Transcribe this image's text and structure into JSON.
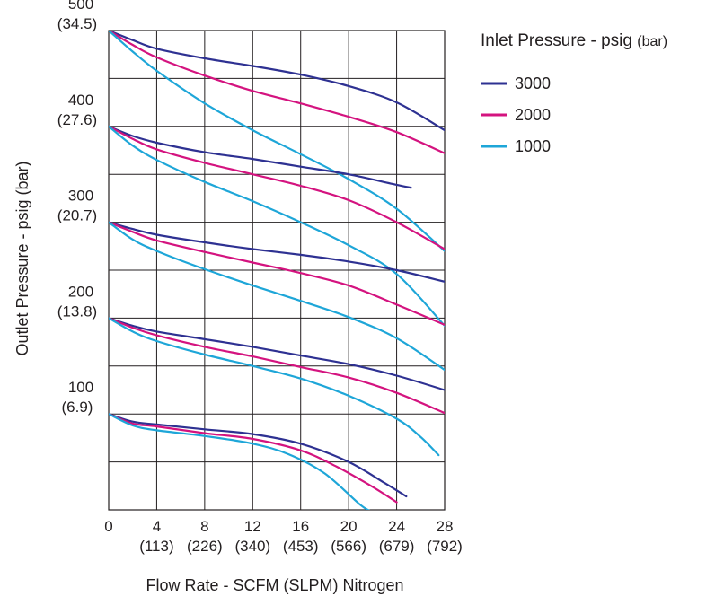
{
  "chart_data": {
    "type": "line",
    "xlabel": "Flow Rate - SCFM (SLPM) Nitrogen",
    "ylabel": "Outlet Pressure - psig (bar)",
    "xlim": [
      0,
      28
    ],
    "ylim": [
      0,
      500
    ],
    "x_ticks": [
      {
        "value": 0,
        "label": "0",
        "sub": ""
      },
      {
        "value": 4,
        "label": "4",
        "sub": "(113)"
      },
      {
        "value": 8,
        "label": "8",
        "sub": "(226)"
      },
      {
        "value": 12,
        "label": "12",
        "sub": "(340)"
      },
      {
        "value": 16,
        "label": "16",
        "sub": "(453)"
      },
      {
        "value": 20,
        "label": "20",
        "sub": "(566)"
      },
      {
        "value": 24,
        "label": "24",
        "sub": "(679)"
      },
      {
        "value": 28,
        "label": "28",
        "sub": "(792)"
      }
    ],
    "y_ticks": [
      {
        "value": 100,
        "label": "100",
        "sub": "(6.9)"
      },
      {
        "value": 200,
        "label": "200",
        "sub": "(13.8)"
      },
      {
        "value": 300,
        "label": "300",
        "sub": "(20.7)"
      },
      {
        "value": 400,
        "label": "400",
        "sub": "(27.6)"
      },
      {
        "value": 500,
        "label": "500",
        "sub": "(34.5)"
      }
    ],
    "grid": true,
    "legend": {
      "title": "Inlet Pressure - psig",
      "title_unit": "(bar)",
      "position": "right",
      "entries": [
        {
          "label": "3000",
          "color": "#2e3192"
        },
        {
          "label": "2000",
          "color": "#d4137f"
        },
        {
          "label": "1000",
          "color": "#1ea6d8"
        }
      ]
    },
    "series": [
      {
        "inlet": "3000",
        "set": 500,
        "color": "#2e3192",
        "points": [
          [
            0,
            500
          ],
          [
            2,
            490
          ],
          [
            4,
            481
          ],
          [
            8,
            471
          ],
          [
            12,
            463
          ],
          [
            16,
            454
          ],
          [
            20,
            442
          ],
          [
            24,
            425
          ],
          [
            28,
            396
          ]
        ]
      },
      {
        "inlet": "2000",
        "set": 500,
        "color": "#d4137f",
        "points": [
          [
            0,
            500
          ],
          [
            2,
            485
          ],
          [
            4,
            472
          ],
          [
            8,
            453
          ],
          [
            12,
            437
          ],
          [
            16,
            424
          ],
          [
            20,
            410
          ],
          [
            24,
            394
          ],
          [
            28,
            372
          ]
        ]
      },
      {
        "inlet": "1000",
        "set": 500,
        "color": "#1ea6d8",
        "points": [
          [
            0,
            500
          ],
          [
            2,
            478
          ],
          [
            4,
            458
          ],
          [
            8,
            424
          ],
          [
            12,
            396
          ],
          [
            16,
            371
          ],
          [
            20,
            345
          ],
          [
            24,
            314
          ],
          [
            28,
            270
          ]
        ]
      },
      {
        "inlet": "3000",
        "set": 400,
        "color": "#2e3192",
        "points": [
          [
            0,
            400
          ],
          [
            2,
            390
          ],
          [
            4,
            383
          ],
          [
            8,
            373
          ],
          [
            12,
            366
          ],
          [
            16,
            358
          ],
          [
            20,
            350
          ],
          [
            24,
            339
          ],
          [
            25.2,
            336
          ]
        ]
      },
      {
        "inlet": "2000",
        "set": 400,
        "color": "#d4137f",
        "points": [
          [
            0,
            400
          ],
          [
            2,
            387
          ],
          [
            4,
            376
          ],
          [
            8,
            362
          ],
          [
            12,
            350
          ],
          [
            16,
            338
          ],
          [
            20,
            323
          ],
          [
            24,
            300
          ],
          [
            28,
            272
          ]
        ]
      },
      {
        "inlet": "1000",
        "set": 400,
        "color": "#1ea6d8",
        "points": [
          [
            0,
            400
          ],
          [
            2,
            380
          ],
          [
            4,
            365
          ],
          [
            8,
            342
          ],
          [
            12,
            322
          ],
          [
            16,
            300
          ],
          [
            20,
            276
          ],
          [
            24,
            246
          ],
          [
            28,
            192
          ]
        ]
      },
      {
        "inlet": "3000",
        "set": 300,
        "color": "#2e3192",
        "points": [
          [
            0,
            300
          ],
          [
            2,
            293
          ],
          [
            4,
            287
          ],
          [
            8,
            279
          ],
          [
            12,
            272
          ],
          [
            16,
            266
          ],
          [
            20,
            259
          ],
          [
            24,
            250
          ],
          [
            28,
            238
          ]
        ]
      },
      {
        "inlet": "2000",
        "set": 300,
        "color": "#d4137f",
        "points": [
          [
            0,
            300
          ],
          [
            2,
            290
          ],
          [
            4,
            281
          ],
          [
            8,
            269
          ],
          [
            12,
            258
          ],
          [
            16,
            247
          ],
          [
            20,
            234
          ],
          [
            24,
            214
          ],
          [
            28,
            193
          ]
        ]
      },
      {
        "inlet": "1000",
        "set": 300,
        "color": "#1ea6d8",
        "points": [
          [
            0,
            300
          ],
          [
            2,
            282
          ],
          [
            4,
            270
          ],
          [
            8,
            251
          ],
          [
            12,
            234
          ],
          [
            16,
            218
          ],
          [
            20,
            201
          ],
          [
            24,
            179
          ],
          [
            28,
            146
          ]
        ]
      },
      {
        "inlet": "3000",
        "set": 200,
        "color": "#2e3192",
        "points": [
          [
            0,
            200
          ],
          [
            2,
            192
          ],
          [
            4,
            186
          ],
          [
            8,
            178
          ],
          [
            12,
            170
          ],
          [
            16,
            161
          ],
          [
            20,
            152
          ],
          [
            24,
            140
          ],
          [
            28,
            125
          ]
        ]
      },
      {
        "inlet": "2000",
        "set": 200,
        "color": "#d4137f",
        "points": [
          [
            0,
            200
          ],
          [
            2,
            190
          ],
          [
            4,
            182
          ],
          [
            8,
            170
          ],
          [
            12,
            160
          ],
          [
            16,
            149
          ],
          [
            20,
            138
          ],
          [
            24,
            122
          ],
          [
            28,
            101
          ]
        ]
      },
      {
        "inlet": "1000",
        "set": 200,
        "color": "#1ea6d8",
        "points": [
          [
            0,
            200
          ],
          [
            2,
            186
          ],
          [
            4,
            176
          ],
          [
            8,
            162
          ],
          [
            12,
            150
          ],
          [
            16,
            137
          ],
          [
            20,
            119
          ],
          [
            24,
            95
          ],
          [
            26,
            76
          ],
          [
            27.5,
            57
          ]
        ]
      },
      {
        "inlet": "3000",
        "set": 100,
        "color": "#2e3192",
        "points": [
          [
            0,
            100
          ],
          [
            2,
            92
          ],
          [
            4,
            89
          ],
          [
            8,
            84
          ],
          [
            12,
            79
          ],
          [
            16,
            69
          ],
          [
            20,
            50
          ],
          [
            23,
            28
          ],
          [
            24.8,
            14
          ]
        ]
      },
      {
        "inlet": "2000",
        "set": 100,
        "color": "#d4137f",
        "points": [
          [
            0,
            100
          ],
          [
            2,
            90
          ],
          [
            4,
            87
          ],
          [
            8,
            80
          ],
          [
            12,
            74
          ],
          [
            16,
            62
          ],
          [
            19,
            45
          ],
          [
            22,
            24
          ],
          [
            24,
            8
          ]
        ]
      },
      {
        "inlet": "1000",
        "set": 100,
        "color": "#1ea6d8",
        "points": [
          [
            0,
            100
          ],
          [
            2,
            88
          ],
          [
            4,
            83
          ],
          [
            8,
            77
          ],
          [
            12,
            69
          ],
          [
            15,
            58
          ],
          [
            18,
            38
          ],
          [
            21,
            5
          ],
          [
            22,
            -2
          ]
        ]
      }
    ]
  }
}
